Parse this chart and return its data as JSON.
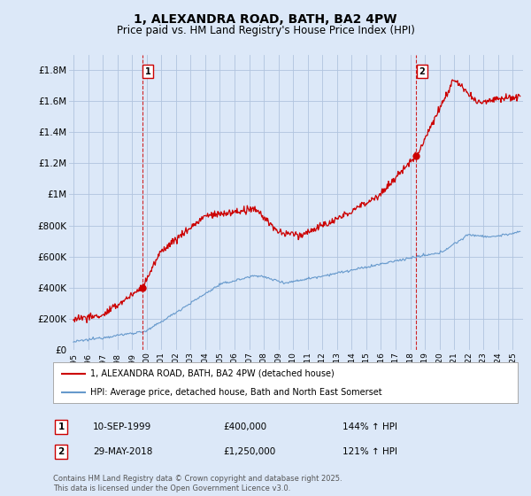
{
  "title": "1, ALEXANDRA ROAD, BATH, BA2 4PW",
  "subtitle": "Price paid vs. HM Land Registry's House Price Index (HPI)",
  "xlim": [
    1994.7,
    2025.7
  ],
  "ylim": [
    0,
    1900000
  ],
  "yticks": [
    0,
    200000,
    400000,
    600000,
    800000,
    1000000,
    1200000,
    1400000,
    1600000,
    1800000
  ],
  "ytick_labels": [
    "£0",
    "£200K",
    "£400K",
    "£600K",
    "£800K",
    "£1M",
    "£1.2M",
    "£1.4M",
    "£1.6M",
    "£1.8M"
  ],
  "sale1_x": 1999.69,
  "sale1_y": 400000,
  "sale1_label": "1",
  "sale1_date": "10-SEP-1999",
  "sale1_price": "£400,000",
  "sale1_hpi": "144% ↑ HPI",
  "sale2_x": 2018.41,
  "sale2_y": 1250000,
  "sale2_label": "2",
  "sale2_date": "29-MAY-2018",
  "sale2_price": "£1,250,000",
  "sale2_hpi": "121% ↑ HPI",
  "line1_color": "#cc0000",
  "line2_color": "#6699cc",
  "background_color": "#dce8f8",
  "plot_bg": "#dce8f8",
  "grid_color": "#b0c4de",
  "legend1": "1, ALEXANDRA ROAD, BATH, BA2 4PW (detached house)",
  "legend2": "HPI: Average price, detached house, Bath and North East Somerset",
  "footnote": "Contains HM Land Registry data © Crown copyright and database right 2025.\nThis data is licensed under the Open Government Licence v3.0.",
  "title_fontsize": 10,
  "subtitle_fontsize": 8.5
}
